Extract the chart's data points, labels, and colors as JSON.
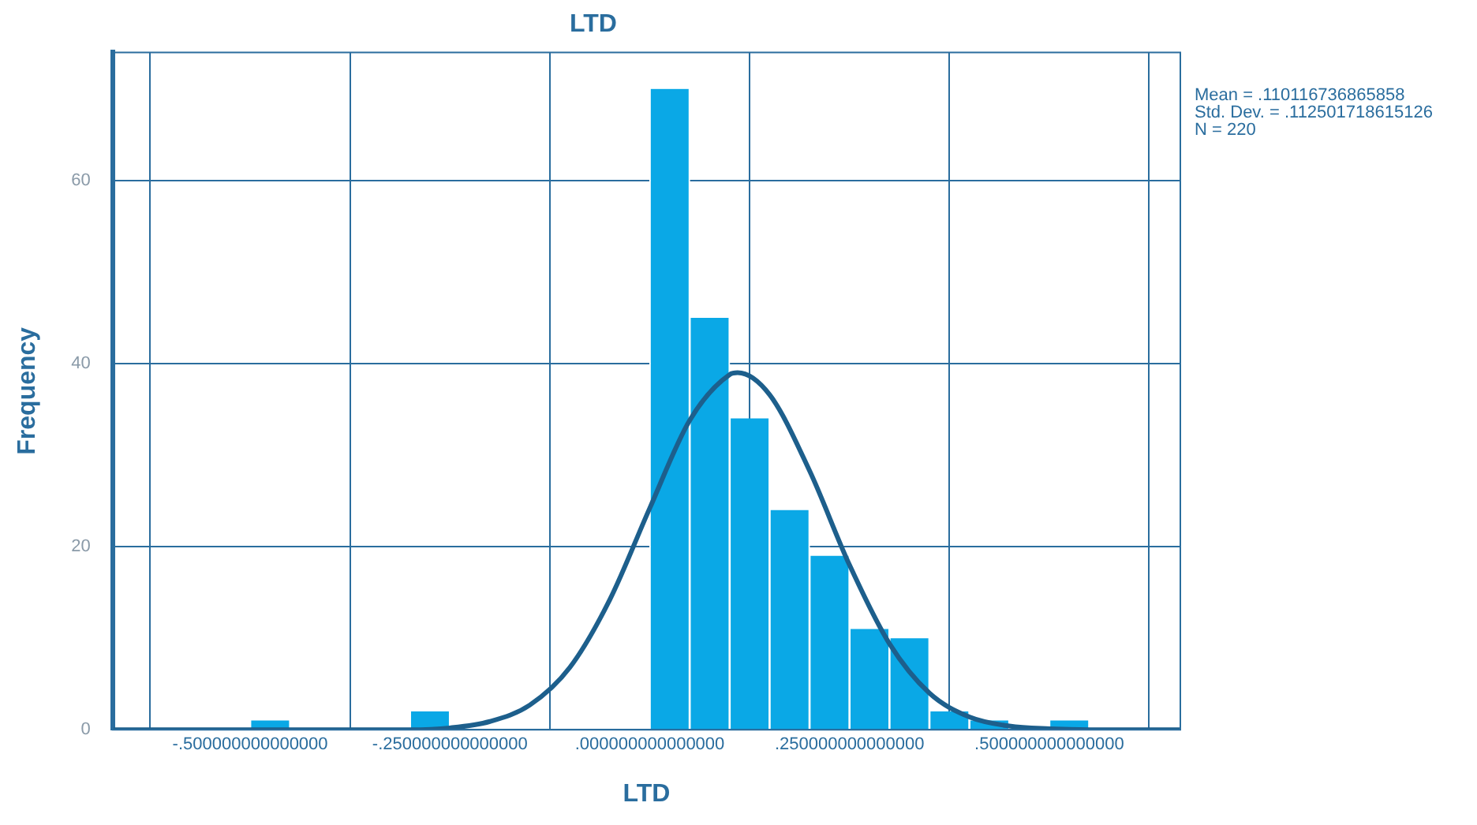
{
  "chart_data": {
    "type": "histogram",
    "title": "LTD",
    "xlabel": "LTD",
    "ylabel": "Frequency",
    "bins": [
      -0.5,
      -0.45,
      -0.4,
      -0.35,
      -0.3,
      -0.25,
      -0.2,
      -0.15,
      -0.1,
      -0.05,
      0,
      0.05,
      0.1,
      0.15,
      0.2,
      0.25,
      0.3,
      0.35,
      0.4,
      0.45,
      0.5,
      0.55
    ],
    "values": [
      1,
      0,
      0,
      0,
      2,
      0,
      0,
      0,
      0,
      0,
      70,
      45,
      34,
      24,
      19,
      11,
      10,
      2,
      1,
      0,
      1
    ],
    "color": "#0aa8e6",
    "series": [
      {
        "type": "line",
        "color": "#1d5f8c",
        "x": [
          -0.672,
          -0.35,
          -0.3,
          -0.25,
          -0.2,
          -0.15,
          -0.1,
          -0.05,
          0,
          0.05,
          0.1,
          0.11,
          0.15,
          0.2,
          0.25,
          0.3,
          0.35,
          0.4,
          0.45,
          0.5,
          0.55,
          0.664
        ],
        "values": [
          0,
          0,
          0,
          0.2,
          0.9,
          2.7,
          6.8,
          14.2,
          24.2,
          33.8,
          38.8,
          39,
          36.6,
          28.3,
          18,
          9.4,
          4,
          1.4,
          0.4,
          0.1,
          0,
          0
        ]
      }
    ],
    "xlim": [
      -0.672,
      0.664
    ],
    "ylim": [
      0,
      74
    ],
    "xticks": [
      {
        "value": -0.5,
        "label": "-.500000000000000"
      },
      {
        "value": -0.25,
        "label": "-.250000000000000"
      },
      {
        "value": 0,
        "label": ".000000000000000"
      },
      {
        "value": 0.25,
        "label": ".250000000000000"
      },
      {
        "value": 0.5,
        "label": ".500000000000000"
      }
    ],
    "yticks": [
      0,
      20,
      40,
      60
    ],
    "grid": true,
    "legend": false,
    "marker": "none",
    "annotations": [
      "Mean = .110116736865858",
      "Std. Dev. = .112501718615126",
      "N = 220"
    ]
  }
}
